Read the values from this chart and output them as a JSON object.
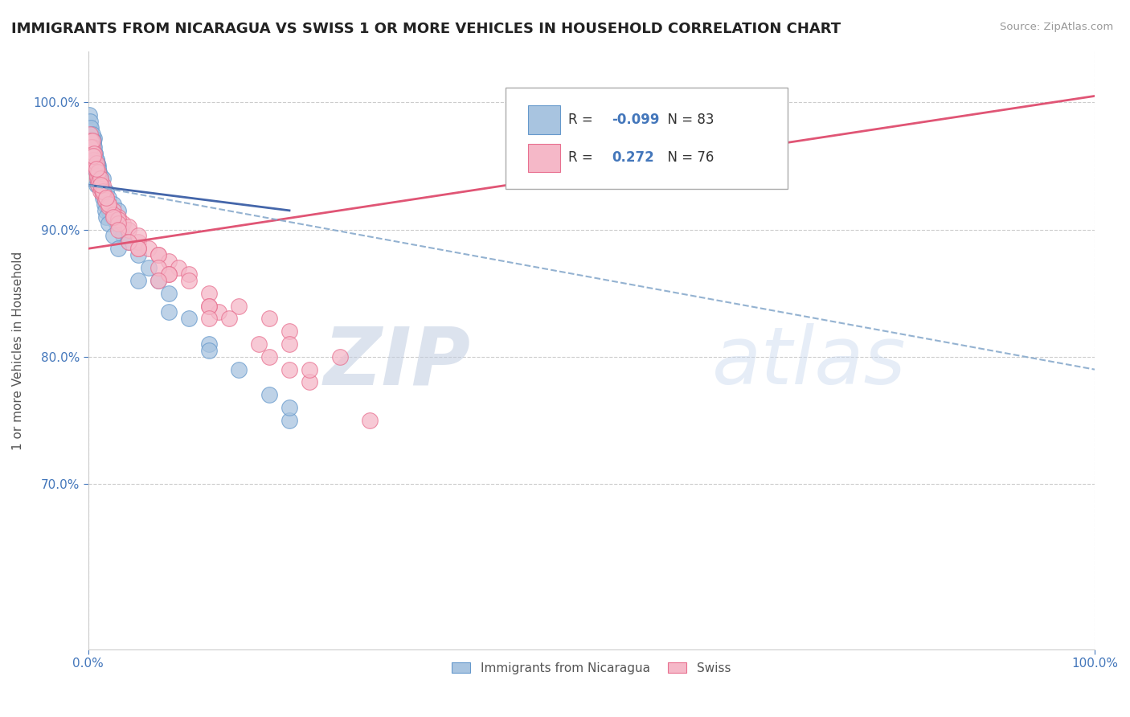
{
  "title": "IMMIGRANTS FROM NICARAGUA VS SWISS 1 OR MORE VEHICLES IN HOUSEHOLD CORRELATION CHART",
  "source": "Source: ZipAtlas.com",
  "ylabel_label": "1 or more Vehicles in Household",
  "xlim": [
    0.0,
    100.0
  ],
  "ylim": [
    57.0,
    104.0
  ],
  "r_blue": -0.099,
  "n_blue": 83,
  "r_pink": 0.272,
  "n_pink": 76,
  "blue_color": "#a8c4e0",
  "pink_color": "#f5b8c8",
  "blue_edge": "#6699cc",
  "pink_edge": "#e87090",
  "trend_blue_solid": "#4466aa",
  "trend_pink_solid": "#e05575",
  "trend_blue_dash": "#88aacc",
  "watermark_zip": "ZIP",
  "watermark_atlas": "atlas",
  "blue_x": [
    0.3,
    0.4,
    0.5,
    0.5,
    0.6,
    0.6,
    0.7,
    0.7,
    0.8,
    0.8,
    0.9,
    0.9,
    1.0,
    1.0,
    1.1,
    1.2,
    1.3,
    1.5,
    1.8,
    2.0,
    2.5,
    3.0,
    0.2,
    0.3,
    0.4,
    0.5,
    0.6,
    0.7,
    0.8,
    0.9,
    1.0,
    1.1,
    1.2,
    1.3,
    1.4,
    1.5,
    1.6,
    1.7,
    1.8,
    1.9,
    2.0,
    2.2,
    2.4,
    2.6,
    2.8,
    3.2,
    3.5,
    4.0,
    5.0,
    6.0,
    7.0,
    8.0,
    10.0,
    12.0,
    15.0,
    18.0,
    20.0,
    0.1,
    0.2,
    0.3,
    0.4,
    0.5,
    0.6,
    0.7,
    0.8,
    0.9,
    1.0,
    1.0,
    1.1,
    1.2,
    1.3,
    1.4,
    1.5,
    1.6,
    1.7,
    1.8,
    2.0,
    2.5,
    3.0,
    5.0,
    8.0,
    12.0,
    20.0
  ],
  "blue_y": [
    97.0,
    96.5,
    96.8,
    95.5,
    97.2,
    95.0,
    96.0,
    94.8,
    95.5,
    93.5,
    95.2,
    94.0,
    95.0,
    93.8,
    94.5,
    94.2,
    93.5,
    94.0,
    93.0,
    92.5,
    92.0,
    91.5,
    98.0,
    97.5,
    97.0,
    96.5,
    96.0,
    95.5,
    95.0,
    94.5,
    94.2,
    93.8,
    93.5,
    93.2,
    93.0,
    92.8,
    92.5,
    92.2,
    92.0,
    91.8,
    91.5,
    91.2,
    91.0,
    90.8,
    90.5,
    90.0,
    89.5,
    89.0,
    88.0,
    87.0,
    86.0,
    85.0,
    83.0,
    81.0,
    79.0,
    77.0,
    75.0,
    99.0,
    98.5,
    98.0,
    97.5,
    97.0,
    96.5,
    96.0,
    95.5,
    95.0,
    94.8,
    93.5,
    94.2,
    93.8,
    93.5,
    93.0,
    92.5,
    92.0,
    91.5,
    91.0,
    90.5,
    89.5,
    88.5,
    86.0,
    83.5,
    80.5,
    76.0
  ],
  "pink_x": [
    0.2,
    0.3,
    0.4,
    0.5,
    0.6,
    0.7,
    0.8,
    0.9,
    1.0,
    1.2,
    1.5,
    1.8,
    2.0,
    2.5,
    3.0,
    3.5,
    4.0,
    5.0,
    6.0,
    7.0,
    8.0,
    9.0,
    10.0,
    12.0,
    15.0,
    18.0,
    20.0,
    25.0,
    0.3,
    0.5,
    0.7,
    0.9,
    1.1,
    1.3,
    1.5,
    1.7,
    2.0,
    2.5,
    3.0,
    4.0,
    5.0,
    7.0,
    10.0,
    13.0,
    17.0,
    22.0,
    0.4,
    0.6,
    0.8,
    1.0,
    1.2,
    1.5,
    2.0,
    3.0,
    5.0,
    8.0,
    12.0,
    20.0,
    0.5,
    0.8,
    1.2,
    1.8,
    2.5,
    4.0,
    7.0,
    12.0,
    20.0,
    3.0,
    5.0,
    8.0,
    14.0,
    22.0,
    7.0,
    12.0,
    18.0,
    28.0
  ],
  "pink_y": [
    97.5,
    97.0,
    96.5,
    96.0,
    95.5,
    95.0,
    94.5,
    94.0,
    93.5,
    93.0,
    93.5,
    92.5,
    92.0,
    91.5,
    91.0,
    90.5,
    90.0,
    89.0,
    88.5,
    88.0,
    87.5,
    87.0,
    86.5,
    85.0,
    84.0,
    83.0,
    82.0,
    80.0,
    96.5,
    95.5,
    95.0,
    94.2,
    93.8,
    93.2,
    92.8,
    92.3,
    91.8,
    91.2,
    90.8,
    90.2,
    89.5,
    88.0,
    86.0,
    83.5,
    81.0,
    78.0,
    97.0,
    96.0,
    95.2,
    94.5,
    94.0,
    93.0,
    92.0,
    90.5,
    88.5,
    86.5,
    84.0,
    81.0,
    95.8,
    94.8,
    93.5,
    92.5,
    91.0,
    89.0,
    87.0,
    84.0,
    79.0,
    90.0,
    88.5,
    86.5,
    83.0,
    79.0,
    86.0,
    83.0,
    80.0,
    75.0
  ],
  "yticks": [
    70,
    80,
    90,
    100
  ],
  "xticks": [
    0,
    100
  ],
  "blue_solid_x0": 0.0,
  "blue_solid_y0": 93.5,
  "blue_solid_x1": 20.0,
  "blue_solid_y1": 91.5,
  "pink_solid_x0": 0.0,
  "pink_solid_y0": 88.5,
  "pink_solid_x1": 100.0,
  "pink_solid_y1": 100.5,
  "blue_dash_x0": 0.0,
  "blue_dash_y0": 93.5,
  "blue_dash_x1": 100.0,
  "blue_dash_y1": 79.0
}
